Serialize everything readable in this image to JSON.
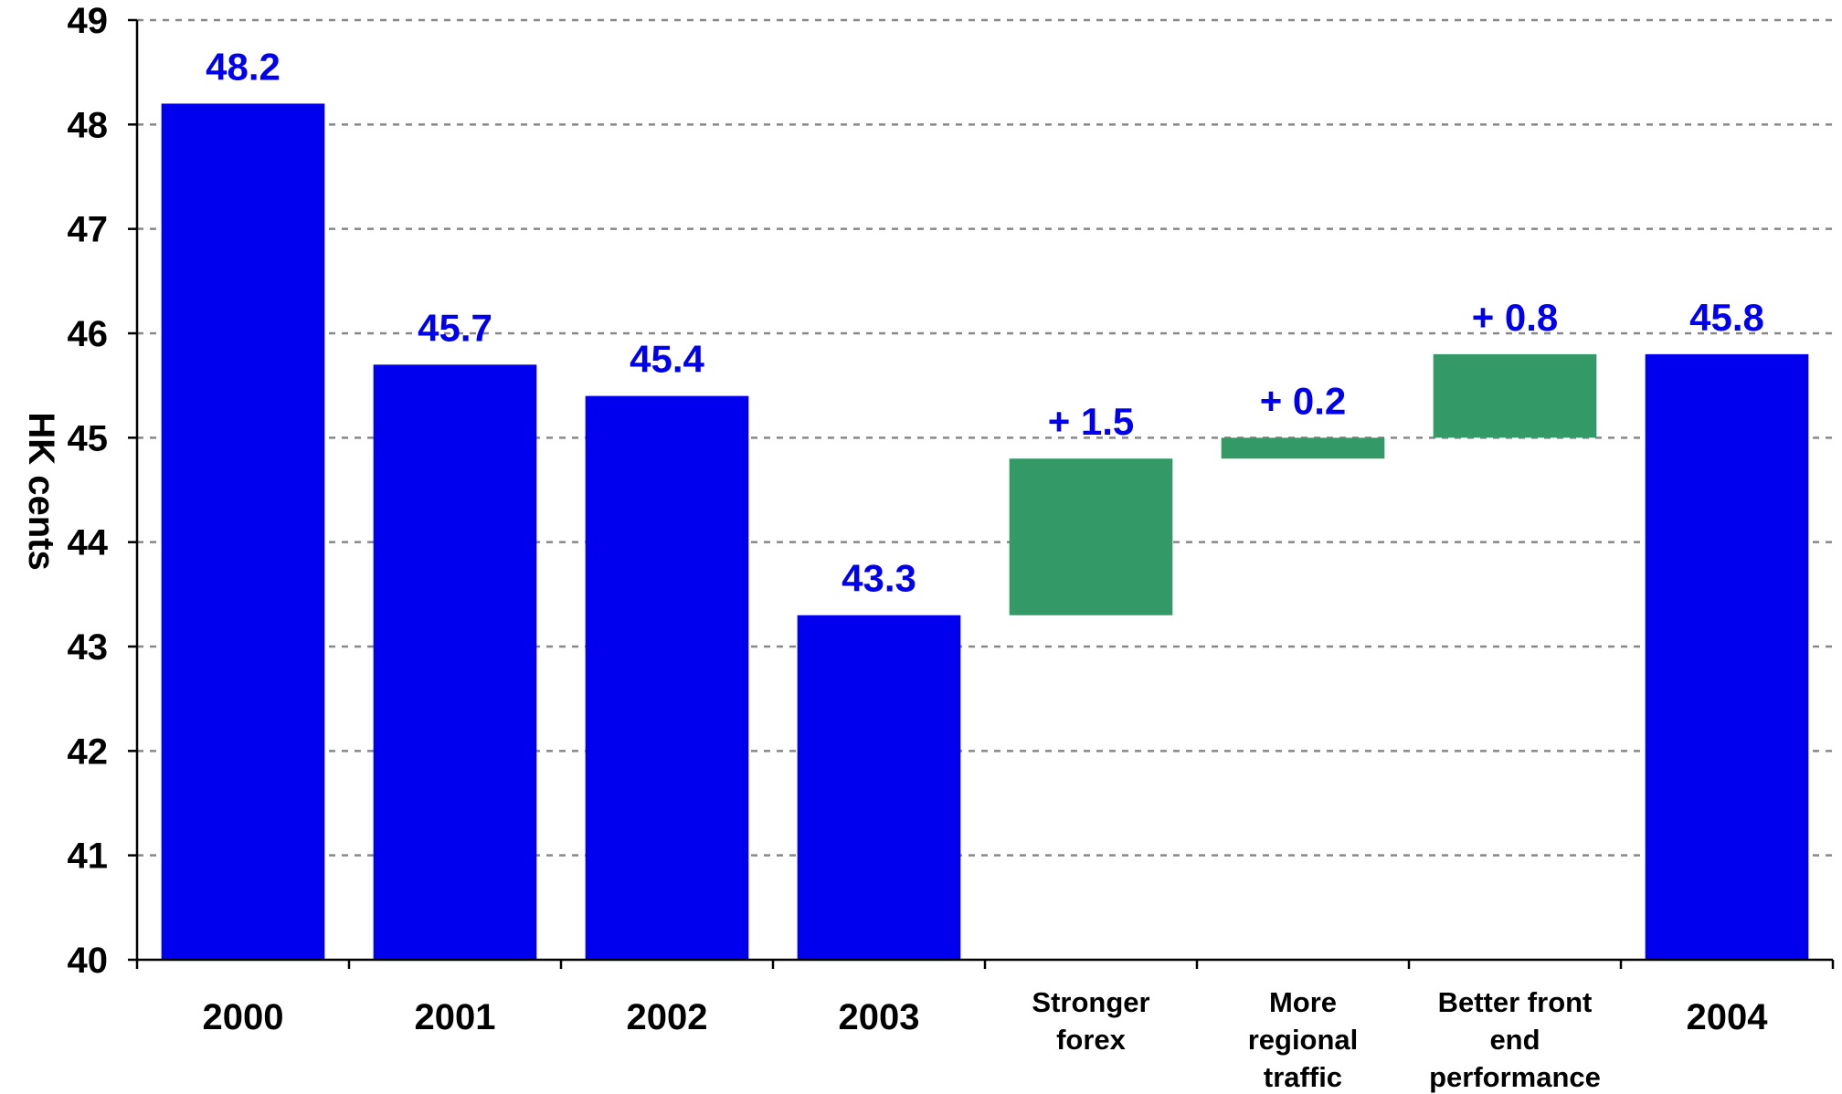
{
  "chart_data": {
    "type": "bar",
    "subtype": "waterfall",
    "ylabel": "HK cents",
    "ylim": [
      40,
      49
    ],
    "yticks": [
      40,
      41,
      42,
      43,
      44,
      45,
      46,
      47,
      48,
      49
    ],
    "grid": true,
    "categories": [
      [
        "2000"
      ],
      [
        "2001"
      ],
      [
        "2002"
      ],
      [
        "2003"
      ],
      [
        "Stronger",
        "forex"
      ],
      [
        "More",
        "regional",
        "traffic"
      ],
      [
        "Better front",
        "end",
        "performance"
      ],
      [
        "2004"
      ]
    ],
    "bars": [
      {
        "kind": "total",
        "base": 40,
        "value": 48.2,
        "label": "48.2"
      },
      {
        "kind": "total",
        "base": 40,
        "value": 45.7,
        "label": "45.7"
      },
      {
        "kind": "total",
        "base": 40,
        "value": 45.4,
        "label": "45.4"
      },
      {
        "kind": "total",
        "base": 40,
        "value": 43.3,
        "label": "43.3"
      },
      {
        "kind": "delta",
        "base": 43.3,
        "value": 44.8,
        "label": "+ 1.5"
      },
      {
        "kind": "delta",
        "base": 44.8,
        "value": 45.0,
        "label": "+ 0.2"
      },
      {
        "kind": "delta",
        "base": 45.0,
        "value": 45.8,
        "label": "+ 0.8"
      },
      {
        "kind": "total",
        "base": 40,
        "value": 45.8,
        "label": "45.8"
      }
    ],
    "colors": {
      "total": "#0000ee",
      "delta": "#339966",
      "label_text": "#0000ee",
      "grid": "#888888"
    }
  }
}
